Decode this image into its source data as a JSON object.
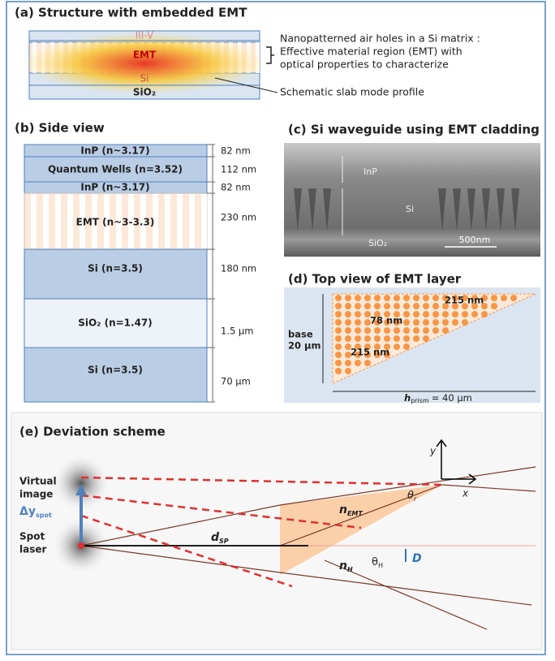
{
  "panel_a": {
    "title": "(a) Structure with embedded EMT",
    "layers": [
      "III-V",
      "EMT",
      "Si",
      "SiO₂"
    ],
    "notes": [
      "Nanopatterned air holes in a Si matrix :",
      "Effective material region (EMT) with",
      "optical properties to characterize",
      "Schematic slab mode profile"
    ]
  },
  "panel_b": {
    "title": "(b) Side view",
    "layers": [
      "InP (n~3.17)",
      "Quantum Wells (n=3.52)",
      "InP (n~3.17)",
      "EMT (n~3-3.3)",
      "Si (n=3.5)",
      "SiO₂ (n=1.47)",
      "Si (n=3.5)"
    ],
    "thicknesses": [
      "82 nm",
      "112 nm",
      "82 nm",
      "230 nm",
      "180 nm",
      "1.5 µm",
      "70 µm"
    ]
  },
  "panel_c": {
    "title": "(c) Si waveguide using EMT cladding",
    "labels": [
      "InP",
      "Si",
      "SiO₂",
      "500nm"
    ]
  },
  "panel_d": {
    "title": "(d) Top view of EMT layer",
    "labels": [
      "215 nm",
      "78 nm",
      "215 nm",
      "base",
      "20 µm"
    ],
    "h_base": "h",
    "h_sub": "prism",
    "h_value": "= 40 µm"
  },
  "panel_e": {
    "title": "(e) Deviation scheme",
    "virtual_image": [
      "Virtual",
      "image"
    ],
    "dy_base": "Δy",
    "dy_sub": "spot",
    "spot_laser": [
      "Spot",
      "laser"
    ],
    "d_base": "d",
    "d_sub": "SP",
    "nemt_base": "n",
    "nemt_sub": "EMT",
    "nh_base": "n",
    "nh_sub": "H",
    "thr_base": "θ",
    "thr_sub": "r",
    "thh_base": "θ",
    "thh_sub": "H",
    "D": "D",
    "y": "y",
    "x": "x"
  }
}
